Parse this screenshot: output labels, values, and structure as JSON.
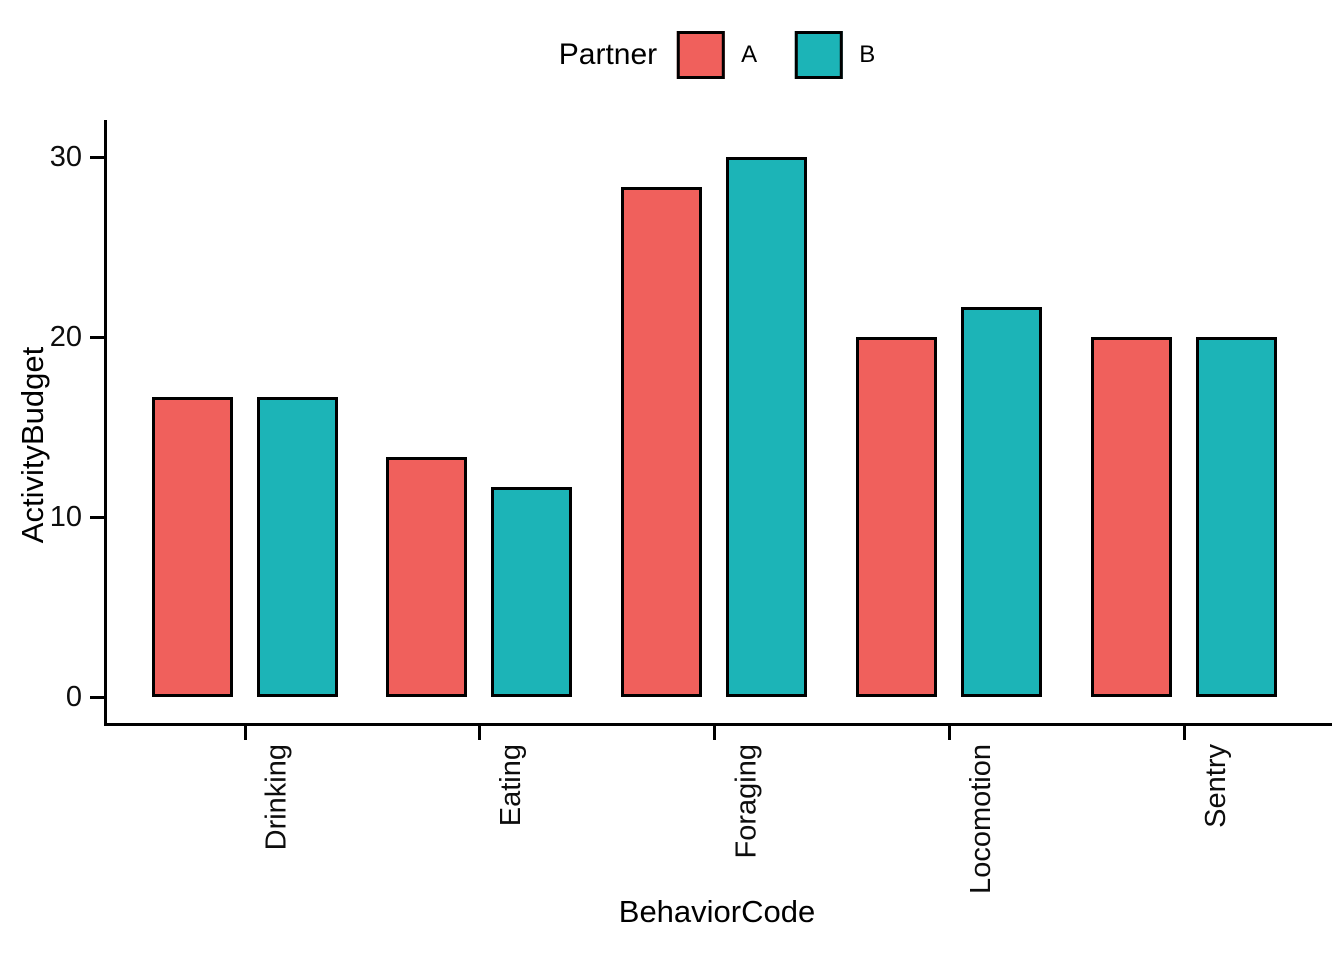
{
  "chart_data": {
    "type": "bar",
    "title": "",
    "xlabel": "BehaviorCode",
    "ylabel": "ActivityBudget",
    "categories": [
      "Drinking",
      "Eating",
      "Foraging",
      "Locomotion",
      "Sentry"
    ],
    "series": [
      {
        "name": "A",
        "color": "#F0605C",
        "values": [
          16.67,
          13.33,
          28.33,
          20,
          20
        ]
      },
      {
        "name": "B",
        "color": "#1CB4B7",
        "values": [
          16.67,
          11.67,
          30,
          21.67,
          20
        ]
      }
    ],
    "yticks": [
      0,
      10,
      20,
      30
    ],
    "ylim": [
      0,
      31.5
    ],
    "grid": false,
    "bar_outline_color": "#000000",
    "axis_color": "#000000",
    "legend": {
      "title": "Partner",
      "position": "top",
      "entries": [
        {
          "label": "A",
          "color": "#F0605C"
        },
        {
          "label": "B",
          "color": "#1CB4B7"
        }
      ]
    }
  }
}
